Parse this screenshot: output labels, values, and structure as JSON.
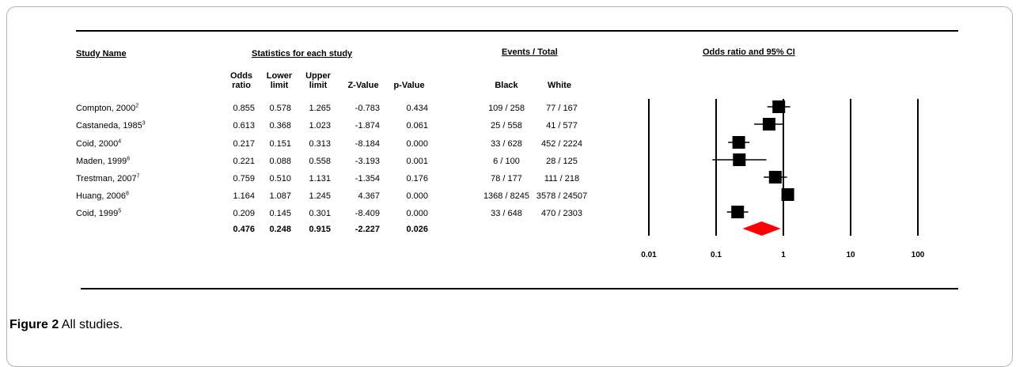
{
  "section_headers": {
    "study_name": "Study Name",
    "statistics": "Statistics for each study",
    "events_total": "Events / Total",
    "odds_ratio_ci": "Odds ratio and 95% CI"
  },
  "columns": {
    "odds": [
      "Odds",
      "ratio"
    ],
    "lower": [
      "Lower",
      "limit"
    ],
    "upper": [
      "Upper",
      "limit"
    ],
    "z": "Z-Value",
    "p": "p-Value",
    "black": "Black",
    "white": "White"
  },
  "studies": [
    {
      "name": "Compton, 2000",
      "ref": "2",
      "or": "0.855",
      "lower": "0.578",
      "upper": "1.265",
      "z": "-0.783",
      "p": "0.434",
      "black": "109 / 258",
      "white": "77 / 167"
    },
    {
      "name": "Castaneda, 1985",
      "ref": "3",
      "or": "0.613",
      "lower": "0.368",
      "upper": "1.023",
      "z": "-1.874",
      "p": "0.061",
      "black": "25 / 558",
      "white": "41 / 577"
    },
    {
      "name": "Coid, 2000",
      "ref": "4",
      "or": "0.217",
      "lower": "0.151",
      "upper": "0.313",
      "z": "-8.184",
      "p": "0.000",
      "black": "33 / 628",
      "white": "452 / 2224"
    },
    {
      "name": "Maden, 1999",
      "ref": "6",
      "or": "0.221",
      "lower": "0.088",
      "upper": "0.558",
      "z": "-3.193",
      "p": "0.001",
      "black": "6 / 100",
      "white": "28 / 125"
    },
    {
      "name": "Trestman, 2007",
      "ref": "7",
      "or": "0.759",
      "lower": "0.510",
      "upper": "1.131",
      "z": "-1.354",
      "p": "0.176",
      "black": "78 / 177",
      "white": "111 / 218"
    },
    {
      "name": "Huang, 2006",
      "ref": "8",
      "or": "1.164",
      "lower": "1.087",
      "upper": "1.245",
      "z": "4.367",
      "p": "0.000",
      "black": "1368 / 8245",
      "white": "3578 / 24507"
    },
    {
      "name": "Coid, 1999",
      "ref": "5",
      "or": "0.209",
      "lower": "0.145",
      "upper": "0.301",
      "z": "-8.409",
      "p": "0.000",
      "black": "33 / 648",
      "white": "470 / 2303"
    }
  ],
  "summary": {
    "or": "0.476",
    "lower": "0.248",
    "upper": "0.915",
    "z": "-2.227",
    "p": "0.026"
  },
  "caption": {
    "figure": "Figure 2",
    "text": "All studies",
    "period": "."
  },
  "chart_data": {
    "type": "scatter",
    "subtype": "forest-plot",
    "title": "Odds ratio and 95% CI",
    "x_scale": "log",
    "xlim": [
      0.01,
      100
    ],
    "x_ticks": [
      "0.01",
      "0.1",
      "1",
      "10",
      "100"
    ],
    "x_tick_values": [
      0.01,
      0.1,
      1,
      10,
      100
    ],
    "studies": [
      {
        "name": "Compton, 2000",
        "or": 0.855,
        "lower": 0.578,
        "upper": 1.265
      },
      {
        "name": "Castaneda, 1985",
        "or": 0.613,
        "lower": 0.368,
        "upper": 1.023
      },
      {
        "name": "Coid, 2000",
        "or": 0.217,
        "lower": 0.151,
        "upper": 0.313
      },
      {
        "name": "Maden, 1999",
        "or": 0.221,
        "lower": 0.088,
        "upper": 0.558
      },
      {
        "name": "Trestman, 2007",
        "or": 0.759,
        "lower": 0.51,
        "upper": 1.131
      },
      {
        "name": "Huang, 2006",
        "or": 1.164,
        "lower": 1.087,
        "upper": 1.245
      },
      {
        "name": "Coid, 1999",
        "or": 0.209,
        "lower": 0.145,
        "upper": 0.301
      }
    ],
    "summary": {
      "or": 0.476,
      "lower": 0.248,
      "upper": 0.915
    },
    "colors": {
      "marker": "#000000",
      "summary": "#ff0000"
    }
  }
}
